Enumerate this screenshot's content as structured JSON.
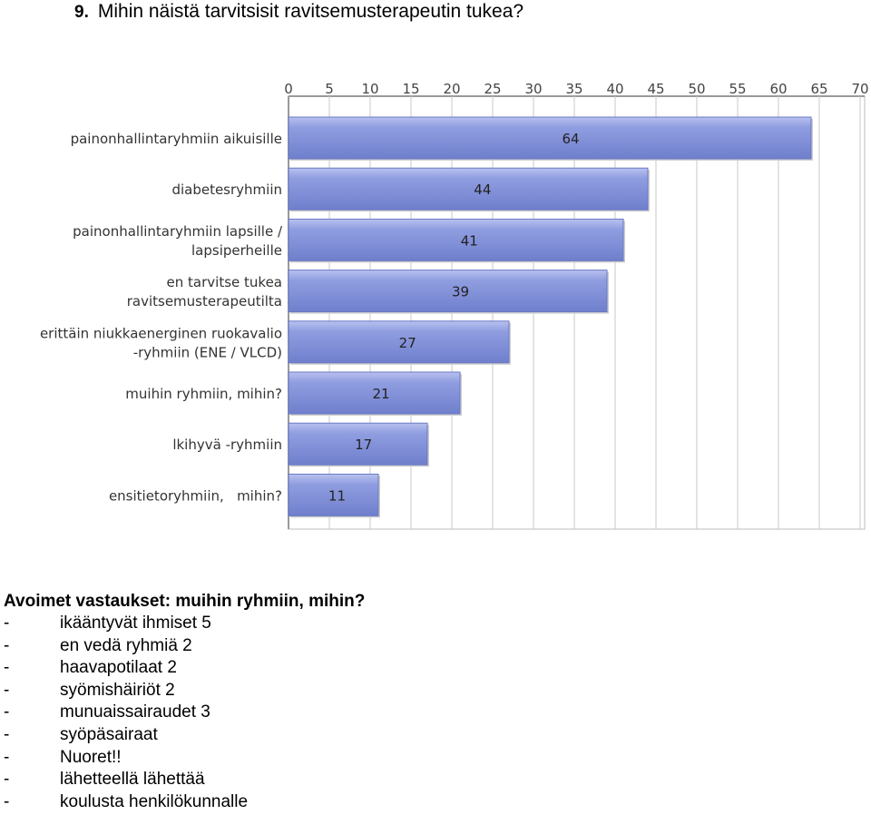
{
  "question": {
    "number": "9.",
    "text": "Mihin näistä tarvitsisit ravitsemusterapeutin tukea?"
  },
  "chart_data": {
    "type": "bar",
    "orientation": "horizontal",
    "categories": [
      [
        "painonhallintaryhmiin aikuisille"
      ],
      [
        "diabetesryhmiin"
      ],
      [
        "painonhallintaryhmiin lapsille /",
        "lapsiperheille"
      ],
      [
        "en tarvitse tukea",
        "ravitsemusterapeutilta"
      ],
      [
        "erittäin niukkaenerginen ruokavalio",
        "-ryhmiin (ENE / VLCD)"
      ],
      [
        "muihin ryhmiin, mihin?"
      ],
      [
        "lkihyvä -ryhmiin"
      ],
      [
        "ensitietoryhmiin,   mihin?"
      ]
    ],
    "values": [
      64,
      44,
      41,
      39,
      27,
      21,
      17,
      11
    ],
    "xlim": [
      0,
      70
    ],
    "xticks": [
      0,
      5,
      10,
      15,
      20,
      25,
      30,
      35,
      40,
      45,
      50,
      55,
      60,
      65,
      70
    ],
    "axis_position": "top",
    "grid": true,
    "data_labels": true,
    "bar_color": "#7f8ed6",
    "bar_highlight": "#b3bdee",
    "grid_color": "#c9c9c9"
  },
  "answers": {
    "heading": "Avoimet vastaukset: muihin ryhmiin, mihin?",
    "items": [
      {
        "dash": "-",
        "text": "ikääntyvät ihmiset 5"
      },
      {
        "dash": "-",
        "text": "en vedä ryhmiä 2"
      },
      {
        "dash": "-",
        "text": "haavapotilaat 2"
      },
      {
        "dash": "-",
        "text": "syömishäiriöt 2"
      },
      {
        "dash": "-",
        "text": "munuaissairaudet 3"
      },
      {
        "dash": "-",
        "text": "syöpäsairaat"
      },
      {
        "dash": "-",
        "text": "Nuoret!!"
      },
      {
        "dash": "-",
        "text": "lähetteellä lähettää"
      },
      {
        "dash": "-",
        "text": "koulusta henkilökunnalle"
      }
    ]
  }
}
